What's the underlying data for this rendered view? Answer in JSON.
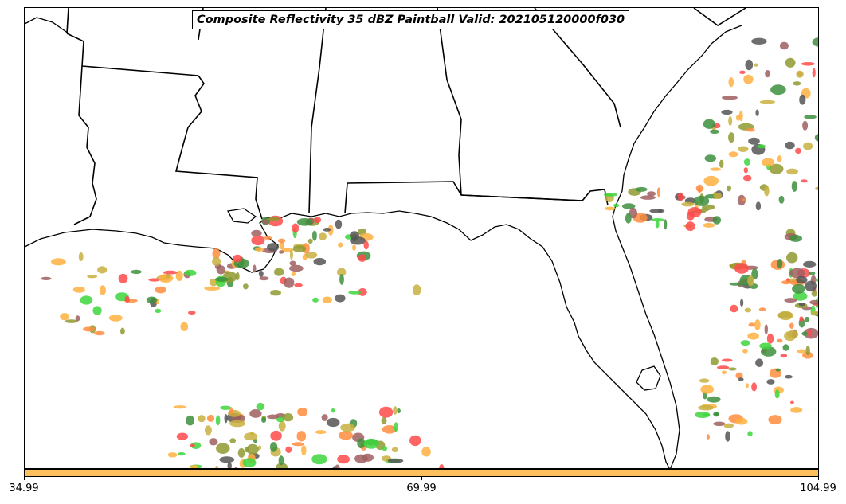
{
  "title": "Composite Reflectivity 35 dBZ Paintball Valid: 202105120000f030",
  "colorbar": {
    "color": "#ffc060",
    "ticks": [
      "34.99",
      "69.99",
      "104.99"
    ]
  },
  "member_colors": [
    "#a05f5f",
    "#ff4a4a",
    "#3dd63d",
    "#8f9a30",
    "#ffb040",
    "#3d8f3d",
    "#ff8c3d",
    "#555555",
    "#c8b040"
  ],
  "map": {
    "coastline_color": "#000000",
    "state_border_color": "#000000"
  }
}
